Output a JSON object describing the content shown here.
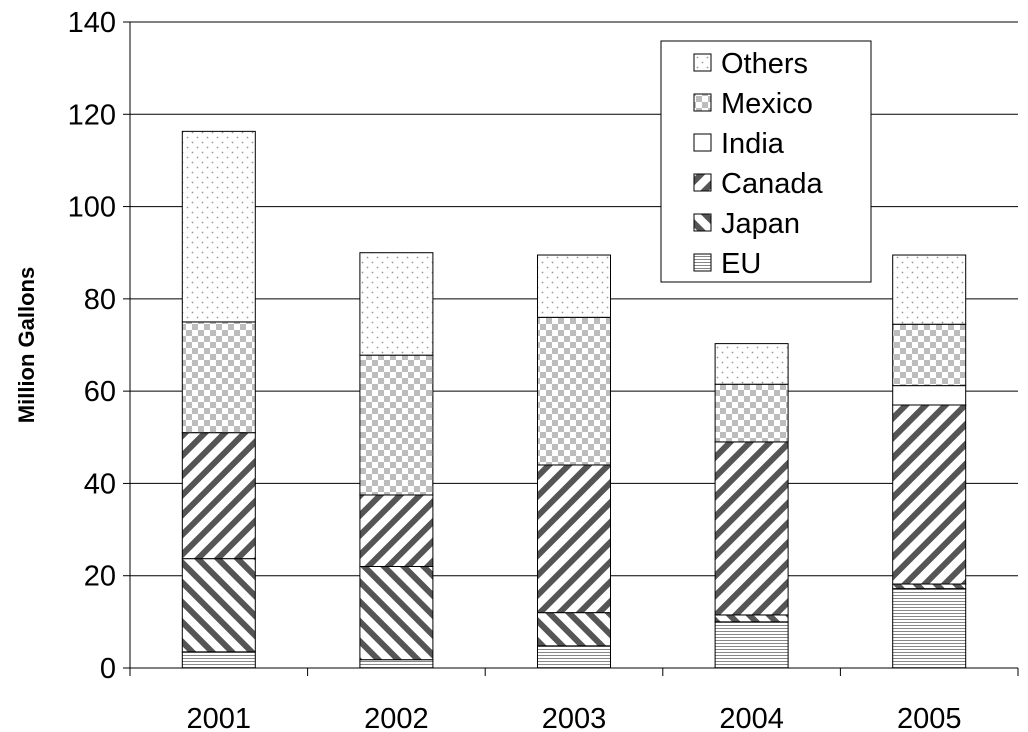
{
  "chart_data": {
    "type": "bar",
    "stacked": true,
    "title": "",
    "xlabel": "",
    "ylabel": "Million Gallons",
    "ylim": [
      0,
      140
    ],
    "yticks": [
      0,
      20,
      40,
      60,
      80,
      100,
      120,
      140
    ],
    "categories": [
      "2001",
      "2002",
      "2003",
      "2004",
      "2005"
    ],
    "grid": "horizontal",
    "legend_position": "top-right",
    "series": [
      {
        "name": "EU",
        "pattern": "horizontal-lines",
        "values": [
          3.5,
          1.8,
          4.8,
          10.0,
          17.2
        ]
      },
      {
        "name": "Japan",
        "pattern": "diagonal-down",
        "values": [
          20.2,
          20.2,
          7.2,
          1.5,
          1.0
        ]
      },
      {
        "name": "Canada",
        "pattern": "diagonal-up",
        "values": [
          27.3,
          15.5,
          32.0,
          37.5,
          38.8
        ]
      },
      {
        "name": "India",
        "pattern": "white",
        "values": [
          0.0,
          0.0,
          0.0,
          0.0,
          4.2
        ]
      },
      {
        "name": "Mexico",
        "pattern": "checker",
        "values": [
          24.0,
          30.3,
          32.0,
          12.5,
          13.3
        ]
      },
      {
        "name": "Others",
        "pattern": "dots",
        "values": [
          41.3,
          22.2,
          13.5,
          8.8,
          15.0
        ]
      }
    ]
  }
}
